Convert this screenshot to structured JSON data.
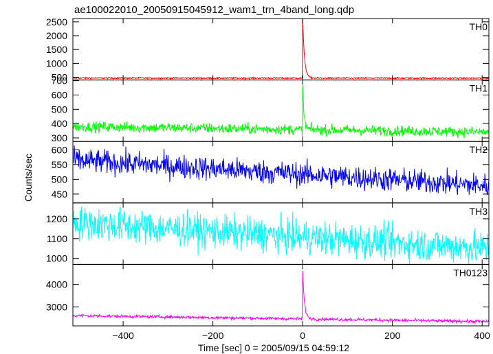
{
  "title": "ae100022010_20050915045912_wam1_trn_4band_long.qdp",
  "chart_data": {
    "type": "line",
    "title": "ae100022010_20050915045912_wam1_trn_4band_long.qdp",
    "xlabel": "Time [sec] 0 = 2005/09/15 04:59:12",
    "ylabel": "Counts/sec",
    "xlim": [
      -512,
      415
    ],
    "xticks": [
      -400,
      -200,
      0,
      200,
      400
    ],
    "xticklabels": [
      "−400",
      "−200",
      "0",
      "200",
      "400"
    ],
    "grid": false,
    "panels": [
      {
        "name": "TH0",
        "color": "#ff0000",
        "ylim": [
          400,
          2620
        ],
        "yticks": [
          500,
          1000,
          1500,
          2000,
          2500
        ],
        "model": {
          "base_start": 470,
          "base_end": 465,
          "noise": 13,
          "spike_peak": 2620,
          "spike_decay": 4
        }
      },
      {
        "name": "TH1",
        "color": "#00ff00",
        "ylim": [
          275,
          705
        ],
        "yticks": [
          300,
          400,
          500,
          600,
          700
        ],
        "model": {
          "base_start": 380,
          "base_end": 340,
          "noise": 18,
          "spike_peak": 680,
          "spike_decay": 3
        }
      },
      {
        "name": "TH2",
        "color": "#0000ff",
        "ylim": [
          420,
          628
        ],
        "yticks": [
          450,
          500,
          550,
          600
        ],
        "model": {
          "base_start": 565,
          "base_end": 478,
          "noise": 20,
          "spike_peak": 0,
          "spike_decay": 0
        }
      },
      {
        "name": "TH3",
        "color": "#00ffff",
        "ylim": [
          970,
          1280
        ],
        "yticks": [
          1000,
          1100,
          1200
        ],
        "model": {
          "base_start": 1180,
          "base_end": 1050,
          "noise": 42,
          "spike_peak": 0,
          "spike_decay": 0
        }
      },
      {
        "name": "TH0123",
        "color": "#ff00ff",
        "ylim": [
          2150,
          4900
        ],
        "yticks": [
          3000,
          4000
        ],
        "model": {
          "base_start": 2610,
          "base_end": 2340,
          "noise": 35,
          "spike_peak": 4750,
          "spike_decay": 4
        }
      }
    ]
  }
}
